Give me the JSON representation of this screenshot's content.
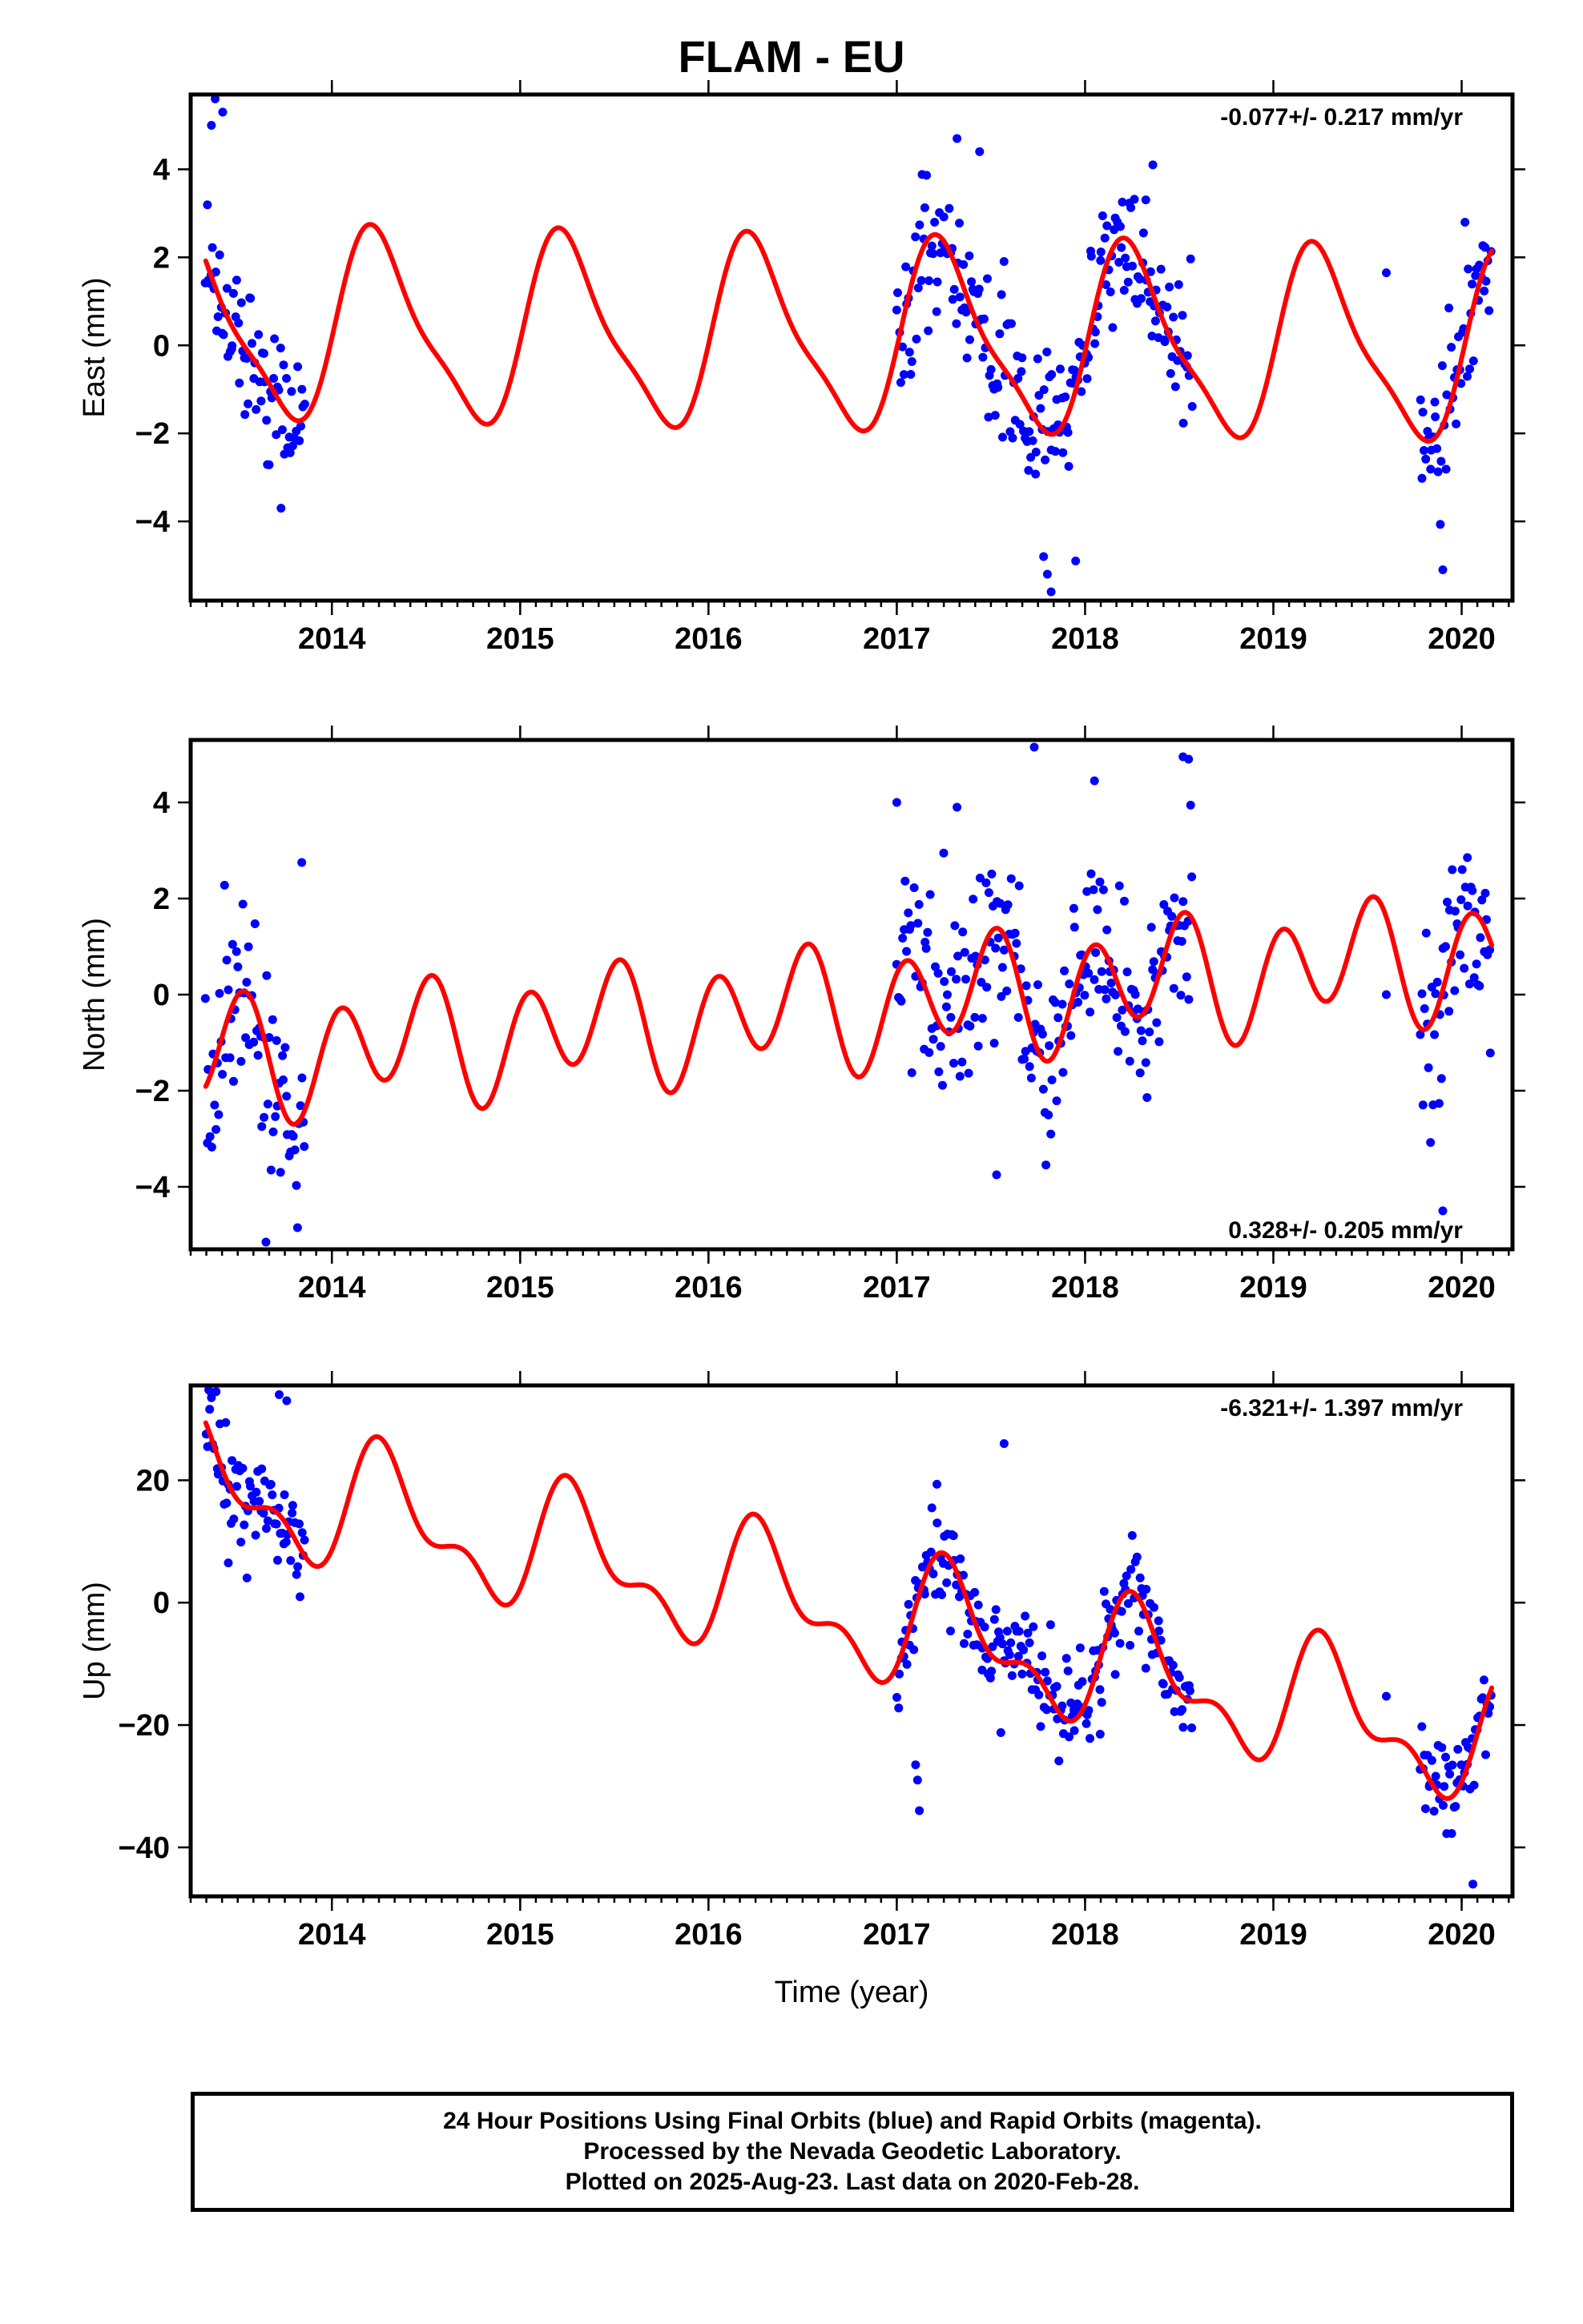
{
  "title": "FLAM - EU",
  "caption": {
    "line1": "24 Hour Positions Using Final Orbits (blue) and Rapid Orbits (magenta).",
    "line2": "Processed by the Nevada Geodetic Laboratory.",
    "line3": "Plotted on 2025-Aug-23. Last data on 2020-Feb-28."
  },
  "colors": {
    "points": "#0000ff",
    "model": "#ff0000",
    "frame": "#000000"
  },
  "chart_data": [
    {
      "type": "scatter",
      "ylabel": "East (mm)",
      "xlabel": "",
      "rate_label": "-0.077+/- 0.217 mm/yr",
      "rate_position": "top-right",
      "xlim": [
        2013.25,
        2020.27
      ],
      "ylim": [
        -5.8,
        5.7
      ],
      "xticks": [
        2014,
        2015,
        2016,
        2017,
        2018,
        2019,
        2020
      ],
      "yticks": [
        -4,
        -2,
        0,
        2,
        4
      ],
      "model": {
        "name": "",
        "c": 0.1,
        "r": -0.077,
        "ref": 2017.5,
        "a1": 0.0,
        "b1": 2.05,
        "a2": -0.2,
        "b2": 0.48,
        "color": "#ff0000"
      },
      "data_ranges": [
        [
          2013.33,
          2013.86
        ],
        [
          2017.0,
          2018.57
        ],
        [
          2019.78,
          2020.16
        ]
      ],
      "sample_step": 0.0075,
      "noise": 0.85,
      "outliers": [
        [
          2013.38,
          5.6
        ],
        [
          2013.42,
          5.3
        ],
        [
          2013.36,
          5.0
        ],
        [
          2017.32,
          4.7
        ],
        [
          2017.44,
          4.4
        ],
        [
          2018.36,
          4.1
        ],
        [
          2017.82,
          -5.6
        ],
        [
          2017.8,
          -5.2
        ],
        [
          2017.78,
          -4.8
        ],
        [
          2017.95,
          -4.9
        ],
        [
          2019.9,
          -5.1
        ],
        [
          2019.6,
          1.65
        ],
        [
          2013.73,
          -3.7
        ]
      ]
    },
    {
      "type": "scatter",
      "ylabel": "North (mm)",
      "xlabel": "",
      "rate_label": "0.328+/- 0.205 mm/yr",
      "rate_position": "bottom-right",
      "xlim": [
        2013.25,
        2020.27
      ],
      "ylim": [
        -5.3,
        5.3
      ],
      "xticks": [
        2014,
        2015,
        2016,
        2017,
        2018,
        2019,
        2020
      ],
      "yticks": [
        -4,
        -2,
        0,
        2,
        4
      ],
      "model": {
        "name": "",
        "c": 0.0,
        "r": 0.328,
        "ref": 2017.5,
        "a1": -0.35,
        "b1": 0.3,
        "a2": 0.95,
        "b2": 0.55,
        "color": "#ff0000"
      },
      "data_ranges": [
        [
          2013.33,
          2013.86
        ],
        [
          2017.0,
          2018.57
        ],
        [
          2019.78,
          2020.16
        ]
      ],
      "sample_step": 0.0075,
      "noise": 1.0,
      "outliers": [
        [
          2017.73,
          5.15
        ],
        [
          2018.52,
          4.95
        ],
        [
          2018.55,
          4.9
        ],
        [
          2018.05,
          4.45
        ],
        [
          2017.32,
          3.9
        ],
        [
          2017.0,
          4.0
        ],
        [
          2013.65,
          -5.15
        ],
        [
          2017.53,
          -3.75
        ],
        [
          2019.9,
          -4.5
        ],
        [
          2013.84,
          2.75
        ],
        [
          2019.6,
          0.0
        ]
      ]
    },
    {
      "type": "scatter",
      "ylabel": "Up (mm)",
      "xlabel": "Time (year)",
      "rate_label": "-6.321+/- 1.397 mm/yr",
      "rate_position": "top-right",
      "xlim": [
        2013.25,
        2020.27
      ],
      "ylim": [
        -48.0,
        35.5
      ],
      "xticks": [
        2014,
        2015,
        2016,
        2017,
        2018,
        2019,
        2020
      ],
      "yticks": [
        -40,
        -20,
        0,
        20
      ],
      "model": {
        "name": "",
        "c": -6.5,
        "r": -6.321,
        "ref": 2017.5,
        "a1": -2.5,
        "b1": 8.5,
        "a2": -4.5,
        "b2": 1.8,
        "color": "#ff0000"
      },
      "data_ranges": [
        [
          2013.33,
          2013.86
        ],
        [
          2017.0,
          2018.57
        ],
        [
          2019.78,
          2020.16
        ]
      ],
      "sample_step": 0.0075,
      "noise": 4.0,
      "outliers": [
        [
          2013.36,
          33.5
        ],
        [
          2013.72,
          34.0
        ],
        [
          2013.76,
          33.0
        ],
        [
          2017.57,
          26.0
        ],
        [
          2017.12,
          -34.0
        ],
        [
          2017.11,
          -29.0
        ],
        [
          2017.1,
          -26.5
        ],
        [
          2020.06,
          -46.0
        ],
        [
          2018.08,
          -21.5
        ],
        [
          2013.45,
          6.5
        ],
        [
          2019.6,
          -15.3
        ]
      ]
    }
  ]
}
